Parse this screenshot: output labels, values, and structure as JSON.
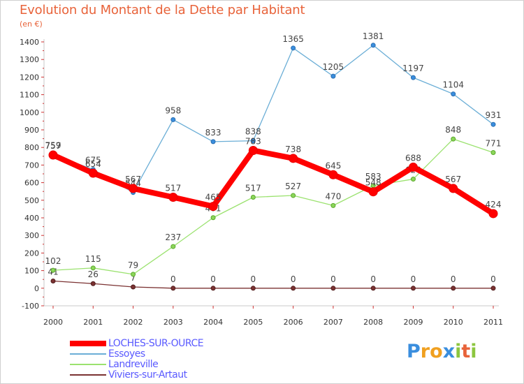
{
  "title": "Evolution du Montant de la Dette par Habitant",
  "unit_label": "(en €)",
  "brand": {
    "letters": [
      "P",
      "r",
      "o",
      "x",
      "i",
      "t",
      "i"
    ],
    "colors": [
      "#3a8ede",
      "#f0a020",
      "#f0a020",
      "#3a8ede",
      "#8cc63f",
      "#e8633a",
      "#8cc63f"
    ]
  },
  "chart_data": {
    "type": "line",
    "title": "Evolution du Montant de la Dette par Habitant",
    "ylabel": "(en €)",
    "xlabel": "",
    "x": [
      "2000",
      "2001",
      "2002",
      "2003",
      "2004",
      "2005",
      "2006",
      "2007",
      "2008",
      "2009",
      "2010",
      "2011"
    ],
    "ylim": [
      -100,
      1400
    ],
    "yticks": [
      "-100",
      "0",
      "100",
      "200",
      "300",
      "400",
      "500",
      "600",
      "700",
      "800",
      "900",
      "1000",
      "1100",
      "1200",
      "1300",
      "1400"
    ],
    "grid": false,
    "legend_position": "bottom-left",
    "series": [
      {
        "name": "LOCHES-SUR-OURCE",
        "color": "#ff0000",
        "values": [
          757,
          654,
          567,
          517,
          465,
          783,
          738,
          645,
          548,
          688,
          567,
          424
        ],
        "labels": [
          "757",
          "654",
          "567",
          "517",
          "465",
          "783",
          "738",
          "645",
          "548",
          "688",
          "567",
          "424"
        ]
      },
      {
        "name": "Essoyes",
        "color": "#6baed6",
        "values": [
          759,
          675,
          544,
          958,
          833,
          838,
          1365,
          1205,
          1381,
          1197,
          1104,
          931
        ],
        "labels": [
          "759",
          "675",
          "544",
          "958",
          "833",
          "838",
          "1365",
          "1205",
          "1381",
          "1197",
          "1104",
          "931"
        ]
      },
      {
        "name": "Landreville",
        "color": "#9be26f",
        "values": [
          102,
          115,
          79,
          237,
          401,
          517,
          527,
          470,
          583,
          620,
          848,
          771
        ],
        "labels": [
          "102",
          "115",
          "79",
          "237",
          "401",
          "517",
          "527",
          "470",
          "583",
          "620",
          "848",
          "771"
        ]
      },
      {
        "name": "Viviers-sur-Artaut",
        "color": "#7b3232",
        "values": [
          41,
          26,
          7,
          0,
          0,
          0,
          0,
          0,
          0,
          0,
          0,
          0
        ],
        "labels": [
          "41",
          "26",
          "7",
          "0",
          "0",
          "0",
          "0",
          "0",
          "0",
          "0",
          "0",
          "0"
        ]
      }
    ]
  }
}
